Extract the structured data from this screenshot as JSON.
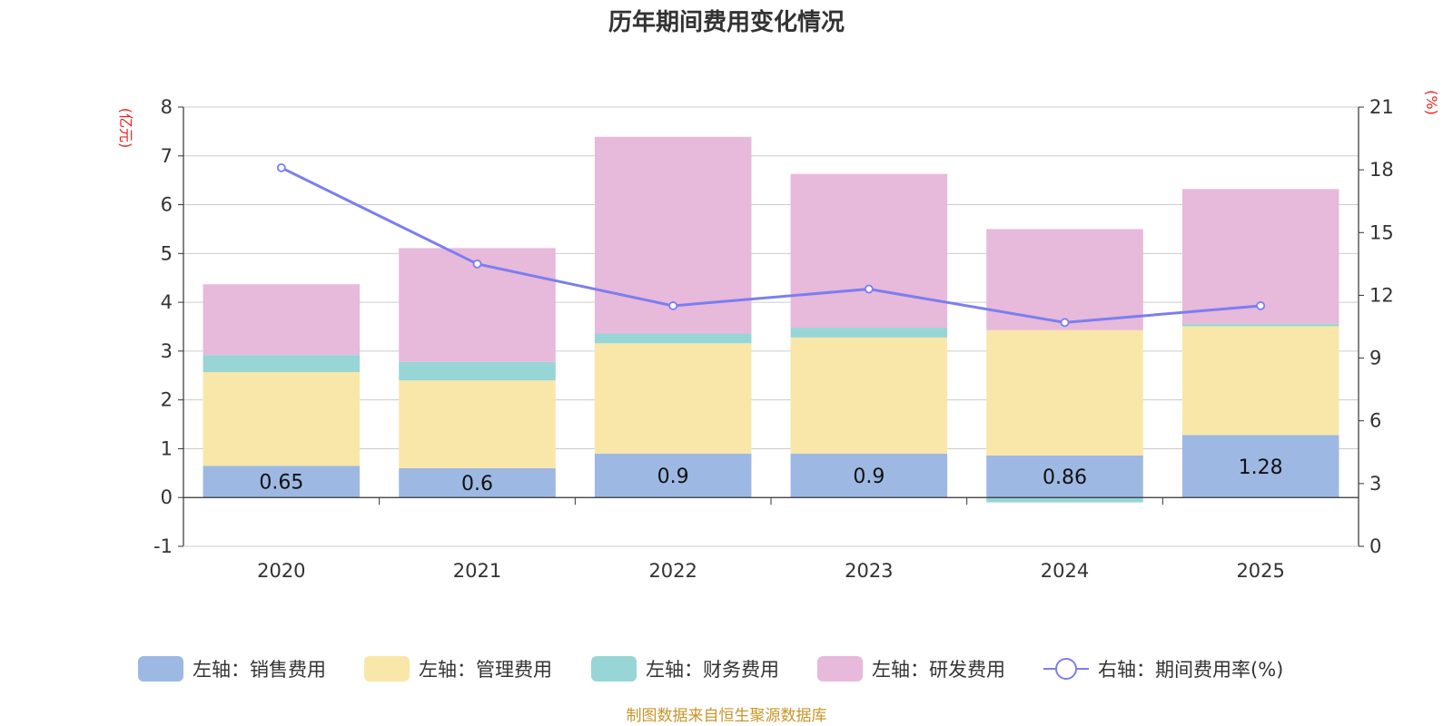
{
  "chart_data": {
    "type": "bar",
    "stacked": true,
    "title": "历年期间费用变化情况",
    "left_axis": {
      "unit": "(亿元)",
      "ylim": [
        -1,
        8
      ],
      "ticks": [
        -1,
        0,
        1,
        2,
        3,
        4,
        5,
        6,
        7,
        8
      ]
    },
    "right_axis": {
      "unit": "(%)",
      "ylim": [
        0,
        21
      ],
      "ticks": [
        0,
        3,
        6,
        9,
        12,
        15,
        18,
        21
      ]
    },
    "categories": [
      "2020",
      "2021",
      "2022",
      "2023",
      "2024",
      "2025"
    ],
    "series": [
      {
        "name": "左轴：销售费用",
        "color": "#9db8e2",
        "values": [
          0.65,
          0.6,
          0.9,
          0.9,
          0.86,
          1.28
        ],
        "labels": [
          "0.65",
          "0.6",
          "0.9",
          "0.9",
          "0.86",
          "1.28"
        ]
      },
      {
        "name": "左轴：管理费用",
        "color": "#f8e7a8",
        "values": [
          1.92,
          1.8,
          2.26,
          2.38,
          2.57,
          2.23
        ]
      },
      {
        "name": "左轴：财务费用",
        "color": "#98d5d6",
        "values": [
          0.35,
          0.38,
          0.2,
          0.2,
          -0.1,
          0.05
        ]
      },
      {
        "name": "左轴：研发费用",
        "color": "#e7b9da",
        "values": [
          1.45,
          2.33,
          4.03,
          3.15,
          2.07,
          2.76
        ]
      }
    ],
    "line": {
      "name": "右轴：期间费用率(%)",
      "color": "#7b7ef0",
      "values": [
        18.1,
        13.5,
        11.5,
        12.3,
        10.7,
        11.5
      ]
    },
    "grid": true,
    "legend_position": "bottom",
    "source": "制图数据来自恒生聚源数据库"
  }
}
